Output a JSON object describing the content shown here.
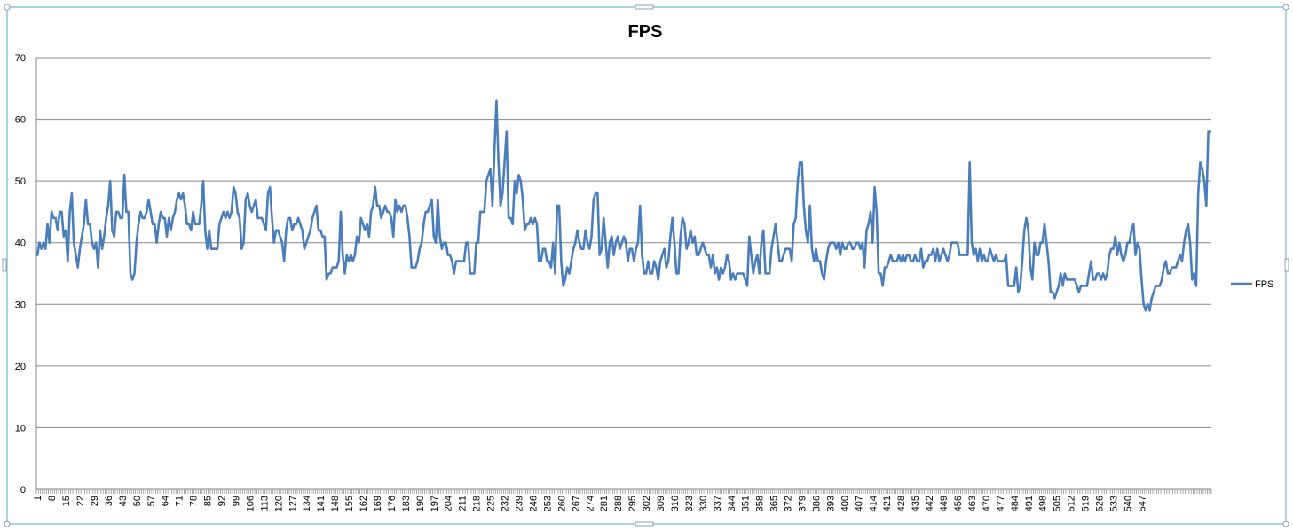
{
  "chart_data": {
    "type": "line",
    "title": "FPS",
    "xlabel": "",
    "ylabel": "",
    "ylim": [
      0,
      70
    ],
    "yticks": [
      0,
      10,
      20,
      30,
      40,
      50,
      60,
      70
    ],
    "grid": true,
    "legend_position": "right",
    "x_start": 1,
    "x_tick_step": 7,
    "x_tick_labels": [
      "1",
      "8",
      "15",
      "22",
      "29",
      "36",
      "43",
      "50",
      "57",
      "64",
      "71",
      "78",
      "85",
      "92",
      "99",
      "106",
      "113",
      "120",
      "127",
      "134",
      "141",
      "148",
      "155",
      "162",
      "169",
      "176",
      "183",
      "190",
      "197",
      "204",
      "211",
      "218",
      "225",
      "232",
      "239",
      "246",
      "253",
      "260",
      "267",
      "274",
      "281",
      "288",
      "295",
      "302",
      "309",
      "316",
      "323",
      "330",
      "337",
      "344",
      "351",
      "358",
      "365",
      "372",
      "379",
      "386",
      "393",
      "400",
      "407",
      "414",
      "421",
      "428",
      "435",
      "442",
      "449",
      "456",
      "463",
      "470",
      "477",
      "484",
      "491",
      "498",
      "505",
      "512",
      "519",
      "526",
      "533",
      "540",
      "547"
    ],
    "series": [
      {
        "name": "FPS",
        "color": "#4a7ebb",
        "values": [
          38,
          40,
          39,
          40,
          39,
          43,
          40,
          45,
          44,
          44,
          42,
          45,
          45,
          41,
          42,
          37,
          45,
          48,
          40,
          38,
          36,
          39,
          41,
          43,
          47,
          43,
          43,
          40,
          39,
          40,
          36,
          42,
          39,
          41,
          44,
          46,
          50,
          42,
          41,
          45,
          45,
          44,
          44,
          51,
          45,
          45,
          35,
          34,
          35,
          40,
          43,
          45,
          44,
          44,
          45,
          47,
          45,
          43,
          43,
          40,
          43,
          45,
          44,
          44,
          41,
          44,
          42,
          44,
          45,
          47,
          48,
          47,
          48,
          46,
          43,
          43,
          42,
          45,
          43,
          43,
          43,
          46,
          50,
          42,
          39,
          42,
          39,
          39,
          39,
          39,
          43,
          44,
          45,
          44,
          45,
          44,
          45,
          49,
          48,
          45,
          44,
          39,
          40,
          47,
          48,
          46,
          45,
          46,
          47,
          44,
          44,
          44,
          43,
          42,
          48,
          49,
          44,
          40,
          42,
          42,
          41,
          40,
          37,
          42,
          44,
          44,
          42,
          43,
          43,
          44,
          43,
          42,
          39,
          40,
          41,
          42,
          44,
          45,
          46,
          42,
          42,
          41,
          41,
          34,
          35,
          35,
          36,
          36,
          36,
          37,
          45,
          38,
          35,
          38,
          37,
          38,
          37,
          38,
          41,
          40,
          44,
          43,
          42,
          43,
          41,
          45,
          46,
          49,
          46,
          46,
          44,
          45,
          46,
          45,
          45,
          44,
          41,
          47,
          45,
          46,
          45,
          46,
          46,
          44,
          41,
          36,
          36,
          36,
          37,
          39,
          40,
          43,
          45,
          45,
          46,
          47,
          41,
          40,
          47,
          41,
          39,
          40,
          40,
          38,
          38,
          37,
          35,
          37,
          37,
          37,
          37,
          37,
          40,
          40,
          35,
          35,
          35,
          40,
          40,
          45,
          45,
          45,
          50,
          51,
          52,
          46,
          55,
          63,
          53,
          46,
          48,
          53,
          58,
          44,
          44,
          43,
          50,
          48,
          51,
          50,
          47,
          42,
          43,
          43,
          44,
          43,
          44,
          43,
          37,
          37,
          39,
          39,
          37,
          37,
          36,
          40,
          35,
          46,
          46,
          37,
          33,
          34,
          36,
          35,
          37,
          39,
          40,
          42,
          40,
          39,
          39,
          42,
          40,
          39,
          41,
          47,
          48,
          48,
          38,
          39,
          44,
          40,
          36,
          40,
          41,
          38,
          40,
          41,
          39,
          40,
          41,
          40,
          37,
          39,
          39,
          37,
          39,
          40,
          46,
          38,
          35,
          35,
          37,
          35,
          35,
          37,
          36,
          34,
          37,
          38,
          39,
          36,
          37,
          41,
          44,
          40,
          35,
          35,
          41,
          44,
          43,
          39,
          40,
          42,
          40,
          41,
          38,
          38,
          39,
          40,
          39,
          38,
          38,
          36,
          38,
          35,
          36,
          34,
          36,
          35,
          36,
          38,
          37,
          34,
          35,
          34,
          35,
          35,
          35,
          35,
          34,
          33,
          41,
          38,
          35,
          37,
          38,
          35,
          40,
          42,
          35,
          35,
          35,
          39,
          41,
          43,
          40,
          37,
          37,
          38,
          39,
          39,
          39,
          37,
          43,
          44,
          50,
          53,
          53,
          46,
          42,
          40,
          46,
          39,
          37,
          39,
          37,
          37,
          35,
          34,
          37,
          39,
          40,
          40,
          40,
          39,
          40,
          38,
          40,
          39,
          39,
          40,
          40,
          39,
          39,
          40,
          40,
          39,
          40,
          36,
          42,
          43,
          45,
          40,
          49,
          45,
          35,
          35,
          33,
          36,
          36,
          37,
          38,
          37,
          37,
          37,
          38,
          37,
          38,
          37,
          38,
          38,
          37,
          37,
          38,
          37,
          37,
          39,
          36,
          37,
          37,
          38,
          38,
          39,
          37,
          39,
          37,
          38,
          39,
          38,
          37,
          38,
          40,
          40,
          40,
          40,
          38,
          38,
          38,
          38,
          38,
          53,
          40,
          38,
          39,
          37,
          39,
          37,
          38,
          37,
          37,
          39,
          38,
          37,
          38,
          37,
          37,
          37,
          37,
          38,
          33,
          33,
          33,
          33,
          36,
          32,
          33,
          37,
          42,
          44,
          42,
          36,
          34,
          40,
          38,
          38,
          40,
          40,
          43,
          40,
          37,
          32,
          32,
          31,
          32,
          33,
          35,
          33,
          35,
          34,
          34,
          34,
          34,
          34,
          33,
          32,
          33,
          33,
          33,
          33,
          35,
          37,
          34,
          34,
          35,
          35,
          34,
          35,
          34,
          35,
          38,
          39,
          39,
          41,
          38,
          40,
          38,
          37,
          38,
          40,
          40,
          42,
          43,
          38,
          40,
          39,
          34,
          30,
          29,
          30,
          29,
          31,
          32,
          33,
          33,
          33,
          34,
          36,
          37,
          35,
          35,
          36,
          36,
          36,
          37,
          38,
          37,
          40,
          42,
          43,
          40,
          34,
          35,
          33,
          48,
          53,
          52,
          50,
          46,
          58,
          58
        ]
      }
    ]
  }
}
